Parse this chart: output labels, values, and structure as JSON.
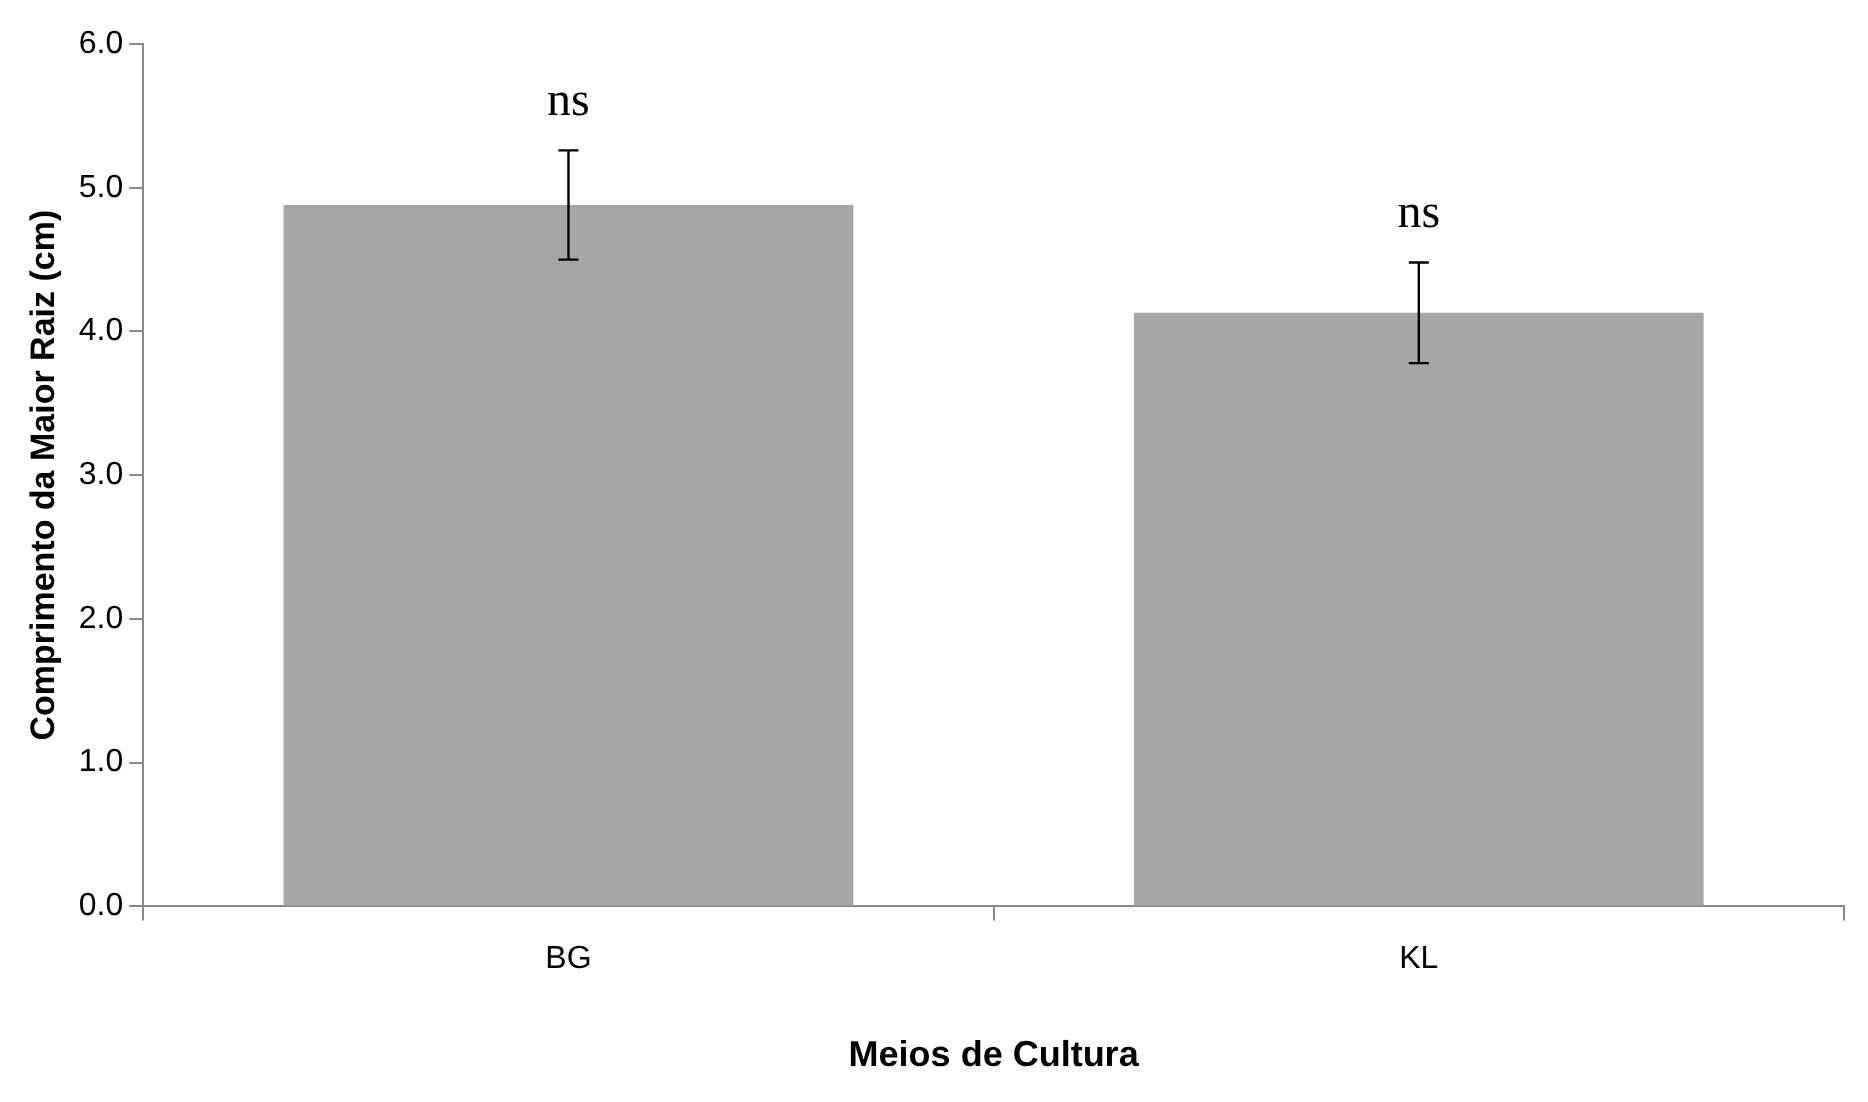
{
  "chart_data": {
    "type": "bar",
    "xlabel": "Meios de Cultura",
    "ylabel": "Comprimento da Maior Raiz (cm)",
    "categories": [
      "BG",
      "KL"
    ],
    "values": [
      4.88,
      4.13
    ],
    "color": "#a6a6a6",
    "errors": [
      0.38,
      0.35
    ],
    "ylim": [
      0,
      6
    ],
    "yticks": [
      {
        "value": 0,
        "label": "0.0"
      },
      {
        "value": 1,
        "label": "1.0"
      },
      {
        "value": 2,
        "label": "2.0"
      },
      {
        "value": 3,
        "label": "3.0"
      },
      {
        "value": 4,
        "label": "4.0"
      },
      {
        "value": 5,
        "label": "5.0"
      },
      {
        "value": 6,
        "label": "6.0"
      }
    ],
    "annotations": [
      "ns",
      "ns"
    ],
    "grid": false,
    "legend": false
  }
}
